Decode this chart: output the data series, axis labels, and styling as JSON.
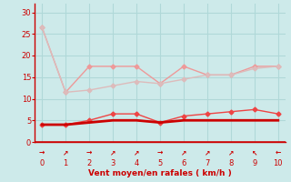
{
  "background_color": "#cdeaea",
  "grid_color": "#b0d8d8",
  "x_values": [
    0,
    1,
    2,
    3,
    4,
    5,
    6,
    7,
    8,
    9,
    10
  ],
  "line_dark_red_y": [
    4.0,
    4.0,
    4.5,
    5.0,
    5.0,
    4.5,
    5.0,
    5.0,
    5.0,
    5.0,
    5.0
  ],
  "line_med_red_y": [
    4.0,
    4.0,
    5.0,
    6.5,
    6.5,
    4.5,
    6.0,
    6.5,
    7.0,
    7.5,
    6.5
  ],
  "line_light1_y": [
    26.5,
    11.5,
    17.5,
    17.5,
    17.5,
    13.5,
    17.5,
    15.5,
    15.5,
    17.5,
    17.5
  ],
  "line_light2_y": [
    26.5,
    11.5,
    12.0,
    13.0,
    14.0,
    13.5,
    14.5,
    15.5,
    15.5,
    17.0,
    17.5
  ],
  "line_dark_red_color": "#cc0000",
  "line_med_red_color": "#ee4444",
  "line_light1_color": "#ee9999",
  "line_light2_color": "#ddbbbb",
  "xlabel": "Vent moyen/en rafales ( km/h )",
  "xlabel_color": "#cc0000",
  "tick_color": "#cc0000",
  "axis_color": "#cc0000",
  "ylim": [
    0,
    32
  ],
  "xlim": [
    -0.3,
    10.3
  ],
  "yticks": [
    0,
    5,
    10,
    15,
    20,
    25,
    30
  ],
  "xticks": [
    0,
    1,
    2,
    3,
    4,
    5,
    6,
    7,
    8,
    9,
    10
  ],
  "arrow_chars": [
    "→",
    "↗",
    "→",
    "↗",
    "↗",
    "→",
    "↗",
    "↗",
    "↗",
    "↖",
    "←"
  ]
}
